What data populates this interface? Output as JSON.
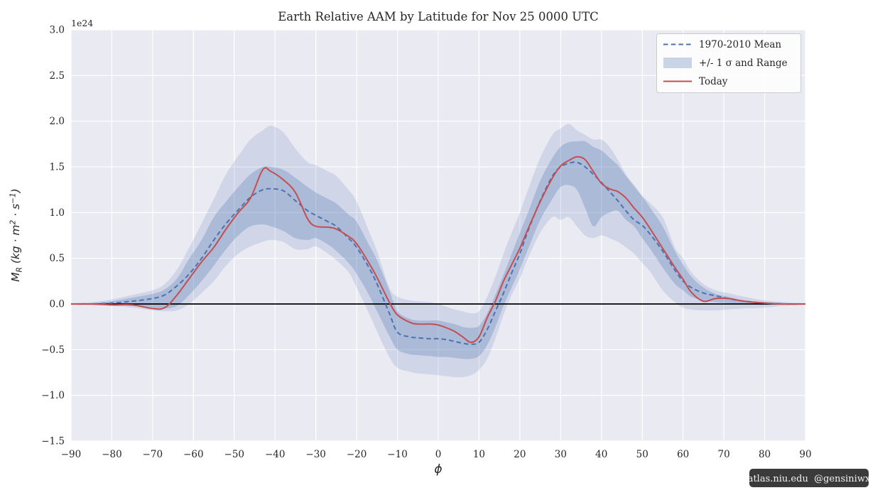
{
  "figure": {
    "title": "Earth Relative AAM by Latitude for Nov 25 0000 UTC",
    "offset_text": "1e24",
    "xlabel": "ϕ",
    "ylabel": "M_R (kg · m² · s⁻¹)",
    "ylabel_parts": [
      "M",
      "R",
      " (kg · m",
      "2",
      " · s",
      "−1",
      ")"
    ],
    "watermark": "atlas.niu.edu  @gensiniwx"
  },
  "legend": {
    "position": "upper right",
    "items": [
      {
        "label": "1970-2010 Mean",
        "swatch": "dashed-line",
        "color": "#4c72b0"
      },
      {
        "label": "+/- 1 σ and Range",
        "swatch": "patch",
        "color": "#c9d4e6"
      },
      {
        "label": "Today",
        "swatch": "solid-line",
        "color": "#c44e52"
      }
    ]
  },
  "colors": {
    "figure_background": "#ffffff",
    "axes_background": "#eaeaf2",
    "grid": "#ffffff",
    "mean_line": "#4c72b0",
    "today_line": "#c44e52",
    "band_fill": "#4c72b0",
    "zero_line": "#000000",
    "tick_label": "#262626",
    "legend_face": "#ffffff",
    "legend_edge": "#cccccc",
    "watermark_bg": "#262626",
    "watermark_text": "#f2f2f2"
  },
  "chart_data": {
    "type": "line",
    "title": "Earth Relative AAM by Latitude for Nov 25 0000 UTC",
    "xlabel": "ϕ",
    "ylabel": "M_R (kg · m² · s⁻¹)",
    "offset_text": "1e24",
    "xlim": [
      -90,
      90
    ],
    "ylim": [
      -1.5,
      3.0
    ],
    "grid": true,
    "legend_position": "upper right",
    "zero_line": 0.0,
    "xtick_values": [
      -90,
      -80,
      -70,
      -60,
      -50,
      -40,
      -30,
      -20,
      -10,
      0,
      10,
      20,
      30,
      40,
      50,
      60,
      70,
      80,
      90
    ],
    "xtick_labels": [
      "−90",
      "−80",
      "−70",
      "−60",
      "−50",
      "−40",
      "−30",
      "−20",
      "−10",
      "0",
      "10",
      "20",
      "30",
      "40",
      "50",
      "60",
      "70",
      "80",
      "90"
    ],
    "ytick_values": [
      -1.5,
      -1.0,
      -0.5,
      0.0,
      0.5,
      1.0,
      1.5,
      2.0,
      2.5,
      3.0
    ],
    "ytick_labels": [
      "−1.5",
      "−1.0",
      "−0.5",
      "0.0",
      "0.5",
      "1.0",
      "1.5",
      "2.0",
      "2.5",
      "3.0"
    ],
    "x": [
      -90,
      -85,
      -80,
      -75,
      -70,
      -67,
      -64,
      -61,
      -58,
      -55,
      -52,
      -49,
      -46,
      -43,
      -41,
      -38,
      -35,
      -32,
      -30,
      -27,
      -25,
      -22,
      -20,
      -17,
      -15,
      -12,
      -10,
      -7,
      -5,
      -2,
      0,
      2,
      4,
      6,
      8,
      10,
      12,
      14,
      16,
      18,
      20,
      22,
      25,
      28,
      30,
      32,
      34,
      36,
      38,
      40,
      42,
      44,
      46,
      48,
      50,
      52,
      55,
      58,
      60,
      62,
      65,
      68,
      71,
      75,
      80,
      85,
      90
    ],
    "series": [
      {
        "name": "1970-2010 Mean",
        "style": "dashed",
        "color": "#4c72b0",
        "values": [
          0.0,
          0.0,
          0.01,
          0.03,
          0.06,
          0.1,
          0.2,
          0.33,
          0.5,
          0.7,
          0.88,
          1.03,
          1.17,
          1.25,
          1.26,
          1.24,
          1.13,
          1.02,
          0.97,
          0.9,
          0.85,
          0.72,
          0.62,
          0.4,
          0.22,
          -0.1,
          -0.31,
          -0.36,
          -0.37,
          -0.38,
          -0.38,
          -0.39,
          -0.41,
          -0.43,
          -0.44,
          -0.42,
          -0.28,
          -0.08,
          0.12,
          0.34,
          0.55,
          0.8,
          1.13,
          1.4,
          1.5,
          1.54,
          1.55,
          1.5,
          1.42,
          1.33,
          1.23,
          1.13,
          1.02,
          0.92,
          0.86,
          0.76,
          0.58,
          0.37,
          0.25,
          0.18,
          0.12,
          0.09,
          0.06,
          0.03,
          0.01,
          0.0,
          0.0
        ]
      },
      {
        "name": "Today",
        "style": "solid",
        "color": "#c44e52",
        "values": [
          0.0,
          0.0,
          -0.01,
          -0.01,
          -0.05,
          -0.04,
          0.1,
          0.28,
          0.46,
          0.62,
          0.82,
          1.0,
          1.16,
          1.47,
          1.45,
          1.36,
          1.22,
          0.93,
          0.85,
          0.84,
          0.82,
          0.74,
          0.66,
          0.45,
          0.29,
          0.02,
          -0.12,
          -0.2,
          -0.22,
          -0.22,
          -0.23,
          -0.26,
          -0.3,
          -0.36,
          -0.42,
          -0.36,
          -0.15,
          0.03,
          0.25,
          0.43,
          0.61,
          0.82,
          1.12,
          1.38,
          1.51,
          1.57,
          1.61,
          1.58,
          1.45,
          1.32,
          1.26,
          1.23,
          1.16,
          1.05,
          0.95,
          0.82,
          0.61,
          0.4,
          0.27,
          0.13,
          0.03,
          0.06,
          0.06,
          0.03,
          0.01,
          0.0,
          0.0
        ]
      }
    ],
    "bands": [
      {
        "name": "range",
        "upper": [
          0.01,
          0.02,
          0.05,
          0.1,
          0.15,
          0.22,
          0.38,
          0.62,
          0.88,
          1.15,
          1.42,
          1.62,
          1.8,
          1.9,
          1.95,
          1.88,
          1.7,
          1.55,
          1.52,
          1.45,
          1.4,
          1.25,
          1.12,
          0.8,
          0.58,
          0.18,
          0.08,
          0.04,
          0.03,
          0.02,
          0.0,
          -0.03,
          -0.06,
          -0.08,
          -0.1,
          -0.08,
          0.08,
          0.3,
          0.55,
          0.78,
          1.0,
          1.25,
          1.6,
          1.85,
          1.92,
          1.97,
          1.9,
          1.85,
          1.8,
          1.8,
          1.72,
          1.58,
          1.42,
          1.28,
          1.18,
          1.1,
          0.95,
          0.62,
          0.5,
          0.35,
          0.22,
          0.15,
          0.12,
          0.08,
          0.04,
          0.02,
          0.01
        ],
        "lower": [
          -0.01,
          -0.01,
          -0.02,
          -0.04,
          -0.07,
          -0.08,
          -0.07,
          0.0,
          0.12,
          0.25,
          0.42,
          0.55,
          0.63,
          0.68,
          0.7,
          0.68,
          0.6,
          0.6,
          0.63,
          0.55,
          0.48,
          0.35,
          0.18,
          -0.1,
          -0.3,
          -0.58,
          -0.7,
          -0.74,
          -0.76,
          -0.77,
          -0.78,
          -0.79,
          -0.8,
          -0.8,
          -0.78,
          -0.72,
          -0.6,
          -0.38,
          -0.12,
          0.1,
          0.28,
          0.5,
          0.78,
          0.95,
          0.92,
          0.95,
          0.85,
          0.75,
          0.72,
          0.75,
          0.72,
          0.68,
          0.62,
          0.55,
          0.45,
          0.35,
          0.15,
          0.02,
          -0.04,
          -0.06,
          -0.07,
          -0.07,
          -0.06,
          -0.05,
          -0.04,
          -0.02,
          -0.01
        ],
        "opacity": 0.16
      },
      {
        "name": "+/- 1 sigma",
        "upper": [
          0.0,
          0.01,
          0.03,
          0.07,
          0.11,
          0.16,
          0.28,
          0.5,
          0.7,
          0.95,
          1.12,
          1.28,
          1.42,
          1.5,
          1.5,
          1.47,
          1.38,
          1.28,
          1.22,
          1.15,
          1.1,
          0.98,
          0.9,
          0.65,
          0.48,
          0.15,
          -0.08,
          -0.16,
          -0.18,
          -0.18,
          -0.18,
          -0.2,
          -0.22,
          -0.25,
          -0.26,
          -0.24,
          -0.1,
          0.1,
          0.32,
          0.55,
          0.78,
          1.0,
          1.35,
          1.6,
          1.72,
          1.77,
          1.78,
          1.78,
          1.72,
          1.68,
          1.6,
          1.52,
          1.4,
          1.3,
          1.18,
          1.05,
          0.85,
          0.58,
          0.43,
          0.3,
          0.18,
          0.11,
          0.08,
          0.04,
          0.02,
          0.01,
          0.0
        ],
        "lower": [
          0.0,
          -0.01,
          -0.01,
          -0.02,
          -0.04,
          -0.05,
          -0.02,
          0.1,
          0.25,
          0.42,
          0.6,
          0.75,
          0.85,
          0.87,
          0.85,
          0.8,
          0.72,
          0.7,
          0.72,
          0.65,
          0.58,
          0.45,
          0.33,
          0.1,
          -0.08,
          -0.35,
          -0.5,
          -0.55,
          -0.56,
          -0.57,
          -0.58,
          -0.58,
          -0.59,
          -0.6,
          -0.6,
          -0.57,
          -0.45,
          -0.25,
          -0.02,
          0.18,
          0.38,
          0.6,
          0.92,
          1.15,
          1.28,
          1.3,
          1.25,
          1.05,
          0.85,
          0.95,
          1.0,
          1.02,
          0.92,
          0.85,
          0.72,
          0.6,
          0.4,
          0.22,
          0.15,
          0.08,
          0.04,
          0.02,
          0.01,
          0.0,
          -0.01,
          0.0,
          0.0
        ],
        "opacity": 0.28
      }
    ]
  }
}
